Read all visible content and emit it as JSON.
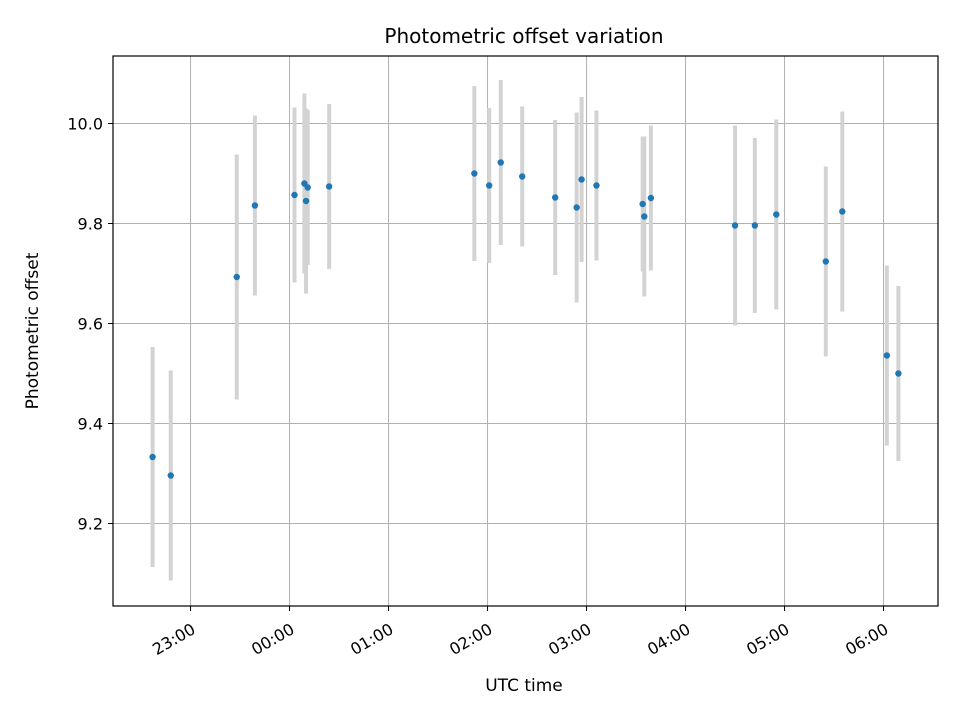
{
  "chart_data": {
    "type": "scatter",
    "title": "Photometric offset variation",
    "xlabel": "UTC time",
    "ylabel": "Photometric offset",
    "x_unit": "UTC time (HH:MM, 22:00 on day 1 through 06:00 on day 2)",
    "xlim": [
      "22:13",
      "06:33"
    ],
    "ylim": [
      9.035,
      10.135
    ],
    "grid": true,
    "x_ticks": [
      "23:00",
      "00:00",
      "01:00",
      "02:00",
      "03:00",
      "04:00",
      "05:00",
      "06:00"
    ],
    "y_ticks": [
      "9.2",
      "9.4",
      "9.6",
      "9.8",
      "10.0"
    ],
    "colors": {
      "point": "#1f77b4",
      "errorbar": "#d3d3d3",
      "grid": "#b0b0b0"
    },
    "series": [
      {
        "points": [
          {
            "x": "22:37",
            "y": 9.333,
            "err": 0.22
          },
          {
            "x": "22:48",
            "y": 9.296,
            "err": 0.21
          },
          {
            "x": "23:28",
            "y": 9.693,
            "err": 0.245
          },
          {
            "x": "23:39",
            "y": 9.836,
            "err": 0.18
          },
          {
            "x": "00:03",
            "y": 9.857,
            "err": 0.175
          },
          {
            "x": "00:09",
            "y": 9.88,
            "err": 0.18
          },
          {
            "x": "00:10",
            "y": 9.845,
            "err": 0.185
          },
          {
            "x": "00:11",
            "y": 9.872,
            "err": 0.155
          },
          {
            "x": "00:24",
            "y": 9.874,
            "err": 0.165
          },
          {
            "x": "01:52",
            "y": 9.9,
            "err": 0.175
          },
          {
            "x": "02:01",
            "y": 9.876,
            "err": 0.155
          },
          {
            "x": "02:08",
            "y": 9.922,
            "err": 0.165
          },
          {
            "x": "02:21",
            "y": 9.894,
            "err": 0.14
          },
          {
            "x": "02:41",
            "y": 9.852,
            "err": 0.155
          },
          {
            "x": "02:54",
            "y": 9.832,
            "err": 0.19
          },
          {
            "x": "02:57",
            "y": 9.888,
            "err": 0.165
          },
          {
            "x": "03:06",
            "y": 9.876,
            "err": 0.15
          },
          {
            "x": "03:34",
            "y": 9.839,
            "err": 0.135
          },
          {
            "x": "03:35",
            "y": 9.814,
            "err": 0.16
          },
          {
            "x": "03:39",
            "y": 9.851,
            "err": 0.145
          },
          {
            "x": "04:30",
            "y": 9.796,
            "err": 0.2
          },
          {
            "x": "04:42",
            "y": 9.796,
            "err": 0.175
          },
          {
            "x": "04:55",
            "y": 9.818,
            "err": 0.19
          },
          {
            "x": "05:25",
            "y": 9.724,
            "err": 0.19
          },
          {
            "x": "05:35",
            "y": 9.824,
            "err": 0.2
          },
          {
            "x": "06:02",
            "y": 9.536,
            "err": 0.18
          },
          {
            "x": "06:09",
            "y": 9.5,
            "err": 0.175
          }
        ]
      }
    ]
  }
}
